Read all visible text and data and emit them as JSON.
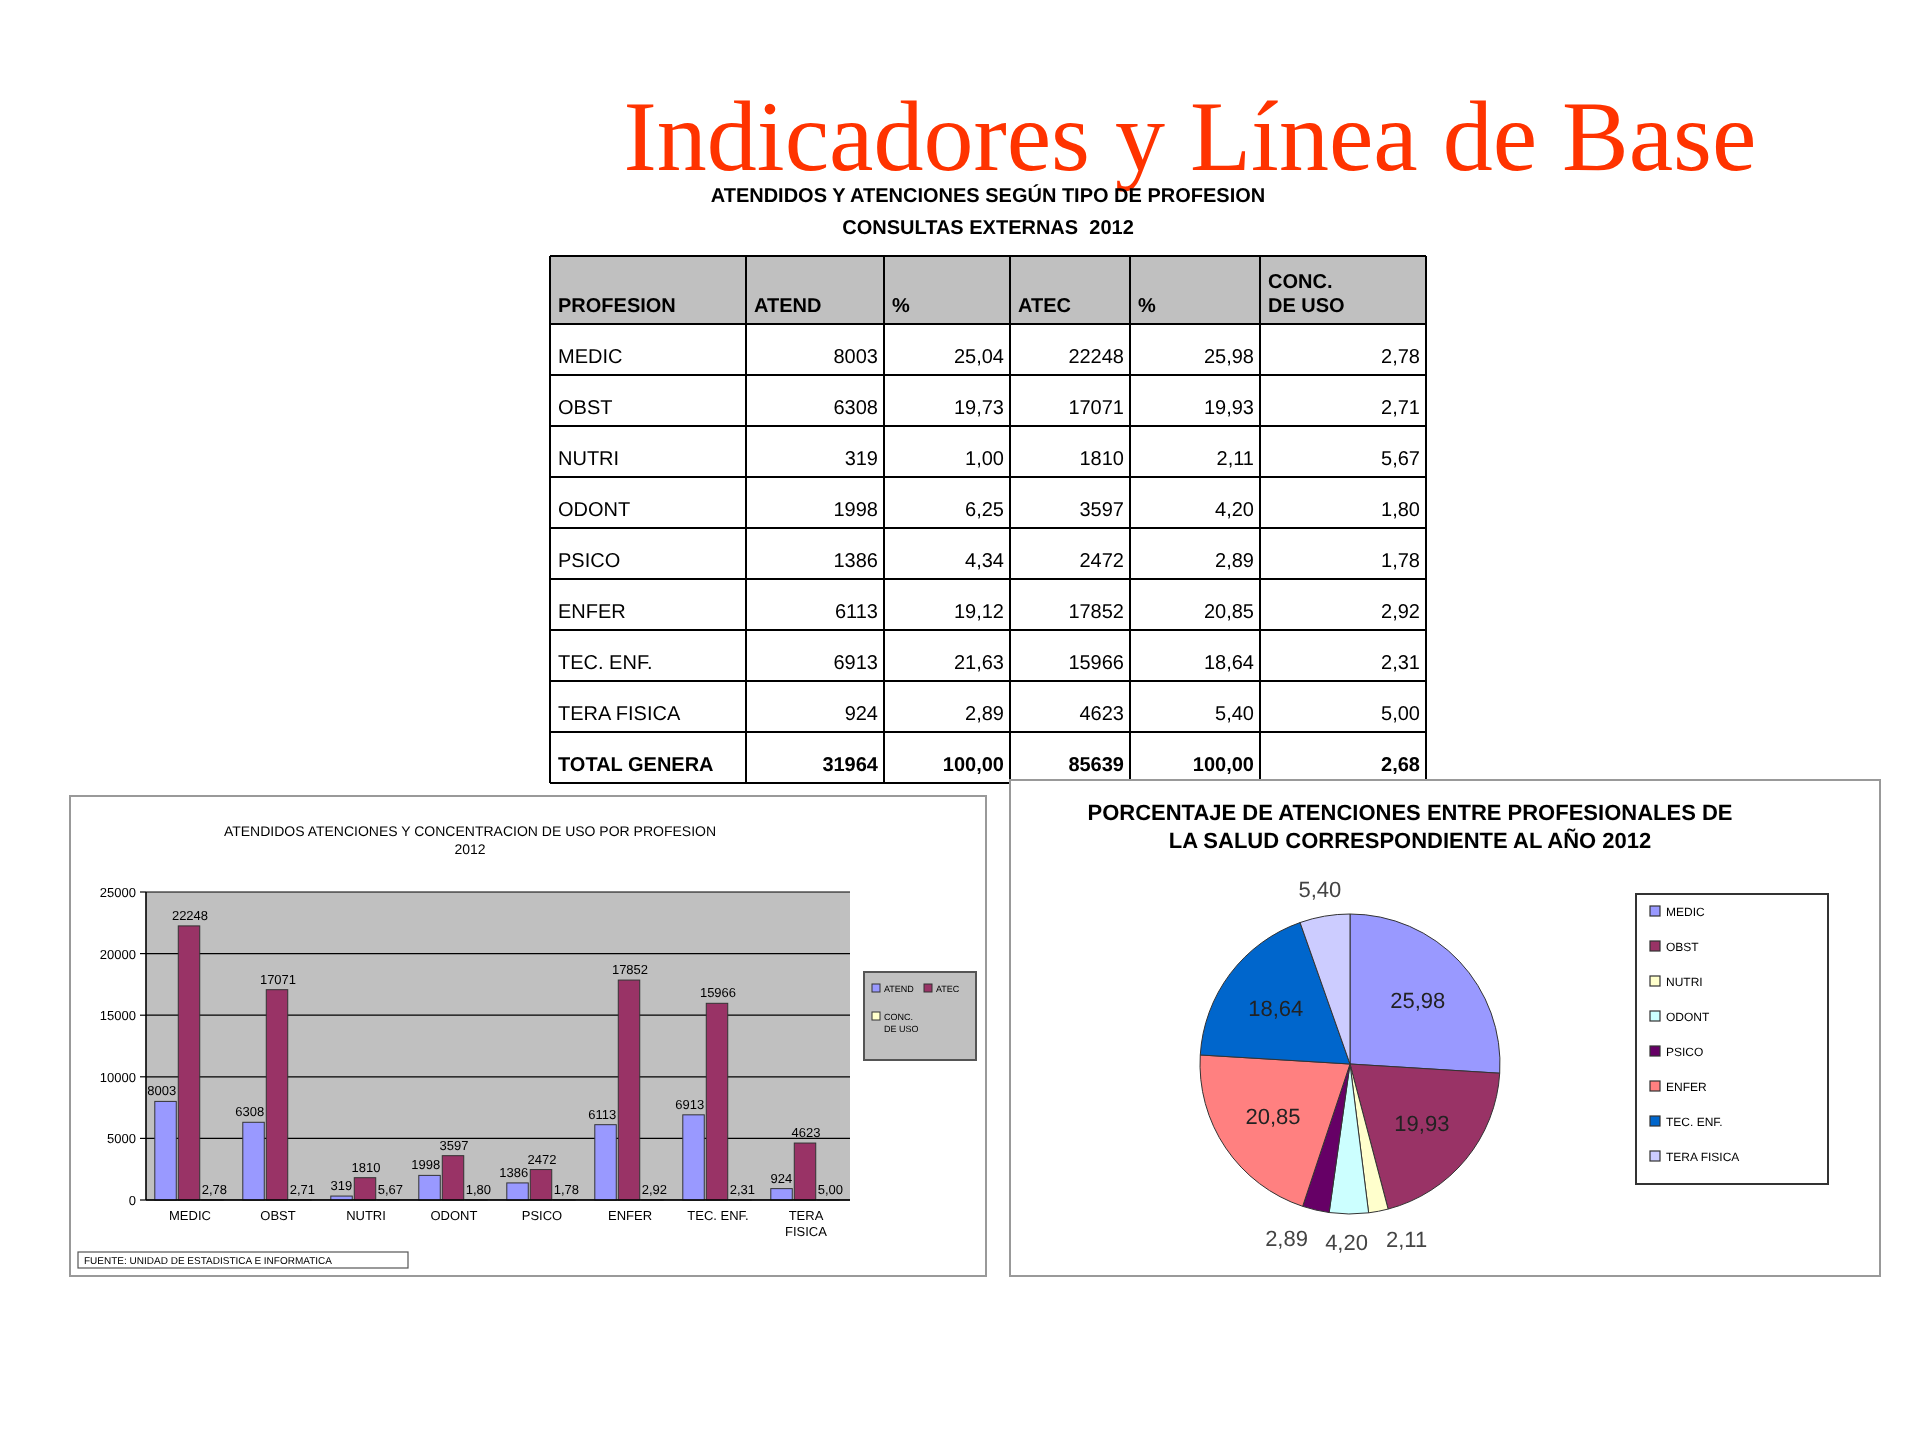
{
  "chart_data": [
    {
      "type": "other",
      "title": "Indicadores y Línea de Base"
    },
    {
      "type": "other",
      "title": "ATENDIDOS Y ATENCIONES SEGÚN TIPO DE PROFESION",
      "subtitle": "CONSULTAS EXTERNAS  2012",
      "xlabel": "PROFESION",
      "categories": [
        "MEDIC",
        "OBST",
        "NUTRI",
        "ODONT",
        "PSICO",
        "ENFER",
        "TEC. ENF.",
        "TERA FISICA",
        "TOTAL GENERA"
      ],
      "data_labels": true,
      "series": [
        {
          "name": "ATEND",
          "values": [
            8003,
            6308,
            319,
            1998,
            1386,
            6113,
            6913,
            924,
            31964
          ],
          "value_labels": [
            "8003",
            "6308",
            "319",
            "1998",
            "1386",
            "6113",
            "6913",
            "924",
            "31964"
          ]
        },
        {
          "name": "%",
          "values": [
            25.04,
            19.73,
            1.0,
            6.25,
            4.34,
            19.12,
            21.63,
            2.89,
            100.0
          ],
          "value_labels": [
            "25,04",
            "19,73",
            "1,00",
            "6,25",
            "4,34",
            "19,12",
            "21,63",
            "2,89",
            "100,00"
          ]
        },
        {
          "name": "ATEC",
          "values": [
            22248,
            17071,
            1810,
            3597,
            2472,
            17852,
            15966,
            4623,
            85639
          ],
          "value_labels": [
            "22248",
            "17071",
            "1810",
            "3597",
            "2472",
            "17852",
            "15966",
            "4623",
            "85639"
          ]
        },
        {
          "name": "%",
          "values": [
            25.98,
            19.93,
            2.11,
            4.2,
            2.89,
            20.85,
            18.64,
            5.4,
            100.0
          ],
          "value_labels": [
            "25,98",
            "19,93",
            "2,11",
            "4,20",
            "2,89",
            "20,85",
            "18,64",
            "5,40",
            "100,00"
          ]
        },
        {
          "name": "CONC. DE USO",
          "values": [
            2.78,
            2.71,
            5.67,
            1.8,
            1.78,
            2.92,
            2.31,
            5.0,
            2.68
          ],
          "value_labels": [
            "2,78",
            "2,71",
            "5,67",
            "1,80",
            "1,78",
            "2,92",
            "2,31",
            "5,00",
            "2,68"
          ]
        }
      ]
    },
    {
      "type": "bar",
      "title": "ATENDIDOS ATENCIONES Y CONCENTRACION DE USO POR PROFESION",
      "subtitle": "2012",
      "categories": [
        "MEDIC",
        "OBST",
        "NUTRI",
        "ODONT",
        "PSICO",
        "ENFER",
        "TEC. ENF.",
        "TERA FISICA"
      ],
      "ylim": [
        0,
        25000
      ],
      "yticks": [
        0,
        5000,
        10000,
        15000,
        20000,
        25000
      ],
      "grid": "y",
      "legend": "right",
      "annotations": [
        "FUENTE: UNIDAD DE ESTADISTICA E INFORMATICA"
      ],
      "series": [
        {
          "name": "ATEND",
          "color": "#9999ff",
          "values": [
            8003,
            6308,
            319,
            1998,
            1386,
            6113,
            6913,
            924
          ],
          "value_labels": [
            "8003",
            "6308",
            "319",
            "1998",
            "1386",
            "6113",
            "6913",
            "924"
          ]
        },
        {
          "name": "ATEC",
          "color": "#993366",
          "values": [
            22248,
            17071,
            1810,
            3597,
            2472,
            17852,
            15966,
            4623
          ],
          "value_labels": [
            "22248",
            "17071",
            "1810",
            "3597",
            "2472",
            "17852",
            "15966",
            "4623"
          ]
        },
        {
          "name": "CONC. DE USO",
          "color": "#ffffcc",
          "values": [
            2.78,
            2.71,
            5.67,
            1.8,
            1.78,
            2.92,
            2.31,
            5.0
          ],
          "value_labels": [
            "2,78",
            "2,71",
            "5,67",
            "1,80",
            "1,78",
            "2,92",
            "2,31",
            "5,00"
          ]
        }
      ]
    },
    {
      "type": "pie",
      "title": "PORCENTAJE DE ATENCIONES ENTRE PROFESIONALES DE LA SALUD CORRESPONDIENTE AL AÑO 2012",
      "categories": [
        "MEDIC",
        "OBST",
        "NUTRI",
        "ODONT",
        "PSICO",
        "ENFER",
        "TEC. ENF.",
        "TERA FISICA"
      ],
      "values": [
        25.98,
        19.93,
        2.11,
        4.2,
        2.89,
        20.85,
        18.64,
        5.4
      ],
      "value_labels": [
        "25,98",
        "19,93",
        "2,11",
        "4,20",
        "2,89",
        "20,85",
        "18,64",
        "5,40"
      ],
      "colors": [
        "#9999ff",
        "#993366",
        "#ffffcc",
        "#ccffff",
        "#660066",
        "#ff8080",
        "#0066cc",
        "#ccccff"
      ],
      "legend": "right"
    }
  ]
}
